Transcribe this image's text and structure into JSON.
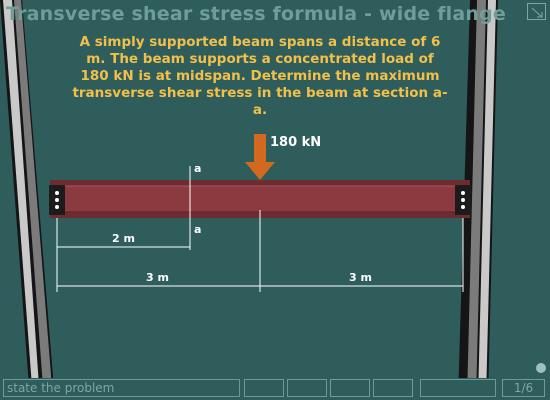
{
  "title": "Transverse shear stress formula - wide flange",
  "problem_text": "A simply supported beam spans a distance of 6 m.  The beam supports a concentrated load of 180 kN is at midspan.  Determine the maximum transverse shear stress in the beam at section a-a.",
  "diagram": {
    "load_label": "180 kN",
    "section_label_top": "a",
    "section_label_bottom": "a",
    "dim_left": "2 m",
    "dim_half_left": "3 m",
    "dim_half_right": "3 m"
  },
  "footer": {
    "status_text": "state the problem",
    "page_current": "1",
    "page_total": "6",
    "page_separator": "/"
  },
  "colors": {
    "background": "#2e5d5c",
    "beam": "#8b3a3f",
    "arrow": "#d2691e",
    "problem_text": "#f2c04a"
  },
  "icons": [
    "expand-icon",
    "rewind-icon",
    "stop-back-icon",
    "play-icon",
    "stop-forward-icon",
    "indicator-dot-icon"
  ]
}
